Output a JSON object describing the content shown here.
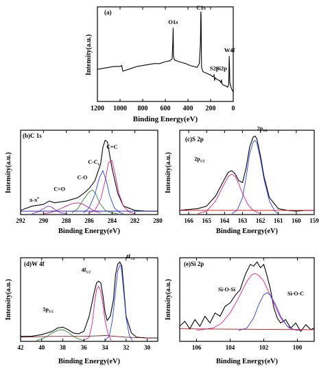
{
  "chart_data": [
    {
      "id": "a",
      "type": "line",
      "panel_label": "(a)",
      "xlabel": "Binding Energy(eV)",
      "ylabel": "Intensity(a.u.)",
      "xlim": [
        1200,
        0
      ],
      "ylim": [
        0,
        1
      ],
      "xticks": [
        1200,
        1000,
        800,
        600,
        400,
        200,
        0
      ],
      "show_y_ticklabels": false,
      "series": [
        {
          "color": "#000000",
          "x": [
            1200,
            1150,
            1100,
            1050,
            1000,
            985,
            975,
            950,
            900,
            850,
            800,
            750,
            700,
            650,
            600,
            560,
            540,
            534,
            531,
            528,
            520,
            500,
            480,
            450,
            420,
            400,
            380,
            350,
            320,
            300,
            290,
            286,
            284,
            282,
            280,
            270,
            260,
            240,
            220,
            200,
            180,
            169,
            165,
            160,
            150,
            140,
            120,
            110,
            104,
            100,
            95,
            80,
            60,
            50,
            40,
            36,
            33,
            30,
            20,
            10,
            0
          ],
          "y": [
            0.34,
            0.35,
            0.36,
            0.37,
            0.37,
            0.38,
            0.32,
            0.33,
            0.35,
            0.37,
            0.38,
            0.39,
            0.4,
            0.4,
            0.42,
            0.43,
            0.45,
            0.62,
            0.78,
            0.48,
            0.44,
            0.43,
            0.42,
            0.41,
            0.4,
            0.39,
            0.38,
            0.37,
            0.36,
            0.4,
            0.6,
            0.95,
            0.92,
            0.55,
            0.36,
            0.32,
            0.31,
            0.3,
            0.29,
            0.28,
            0.26,
            0.28,
            0.22,
            0.25,
            0.24,
            0.23,
            0.22,
            0.2,
            0.23,
            0.19,
            0.18,
            0.17,
            0.16,
            0.15,
            0.18,
            0.48,
            0.35,
            0.2,
            0.15,
            0.12,
            0.1
          ]
        }
      ],
      "annotations": [
        {
          "text": "O1s",
          "x": 531,
          "y": 0.82
        },
        {
          "text": "C1s",
          "x": 284,
          "y": 0.97
        },
        {
          "text": "W4f",
          "x": 33,
          "y": 0.52
        },
        {
          "text": "S2p",
          "x": 165,
          "y": 0.33
        },
        {
          "text": "Si2p",
          "x": 104,
          "y": 0.33
        }
      ]
    },
    {
      "id": "b",
      "type": "line",
      "panel_label": "(b)C 1s",
      "xlabel": "Binding Energy(eV)",
      "ylabel": "Intensity(a.u.)",
      "xlim": [
        292,
        280
      ],
      "ylim": [
        0,
        1
      ],
      "xticks": [
        292,
        290,
        288,
        286,
        284,
        282,
        280
      ],
      "show_y_ticklabels": false,
      "series": [
        {
          "color": "#000000",
          "x": [
            292,
            291,
            290,
            289.5,
            289,
            288,
            287,
            286.5,
            286,
            285.5,
            285,
            284.8,
            284.6,
            284.4,
            284.2,
            284,
            283.5,
            283,
            282,
            281,
            280
          ],
          "y": [
            0.05,
            0.1,
            0.12,
            0.16,
            0.14,
            0.16,
            0.2,
            0.25,
            0.31,
            0.4,
            0.6,
            0.8,
            0.88,
            0.86,
            0.7,
            0.55,
            0.25,
            0.1,
            0.05,
            0.04,
            0.04
          ]
        },
        {
          "color": "#e8198b",
          "x": [
            286,
            285.5,
            285,
            284.6,
            284.3,
            284,
            283.7,
            283.4,
            283,
            282.5,
            282
          ],
          "y": [
            0.02,
            0.05,
            0.18,
            0.4,
            0.62,
            0.64,
            0.46,
            0.25,
            0.1,
            0.03,
            0.01
          ]
        },
        {
          "color": "#1f3fff",
          "x": [
            286.5,
            286,
            285.5,
            285.1,
            284.8,
            284.5,
            284.2,
            283.8,
            283.3,
            283
          ],
          "y": [
            0.02,
            0.08,
            0.24,
            0.44,
            0.52,
            0.4,
            0.22,
            0.08,
            0.02,
            0.01
          ]
        },
        {
          "color": "#2a8a2a",
          "x": [
            287.5,
            287,
            286.5,
            286,
            285.7,
            285.4,
            285.1,
            284.6,
            284,
            283.5
          ],
          "y": [
            0.02,
            0.07,
            0.18,
            0.27,
            0.29,
            0.24,
            0.14,
            0.05,
            0.02,
            0.01
          ]
        },
        {
          "color": "#c8198b",
          "x": [
            290,
            289.5,
            289,
            288.5,
            288,
            287.5,
            287,
            286.5,
            286,
            285.5,
            285
          ],
          "y": [
            0.01,
            0.02,
            0.04,
            0.07,
            0.1,
            0.13,
            0.14,
            0.12,
            0.08,
            0.04,
            0.02
          ]
        },
        {
          "color": "#8a2fd0",
          "x": [
            291,
            290.5,
            290,
            289.6,
            289.3,
            289,
            288.5,
            288
          ],
          "y": [
            0.01,
            0.03,
            0.07,
            0.1,
            0.09,
            0.06,
            0.02,
            0.01
          ]
        },
        {
          "color": "#0000cc",
          "x": [
            292,
            280
          ],
          "y": [
            0.04,
            0.04
          ]
        }
      ],
      "annotations": [
        {
          "text": "C=C",
          "x": 284.0,
          "y": 0.78
        },
        {
          "text": "C-C",
          "sub": "x",
          "x": 285.6,
          "y": 0.6
        },
        {
          "text": "C-O",
          "x": 286.6,
          "y": 0.42
        },
        {
          "text": "C=O",
          "x": 288.6,
          "y": 0.28
        },
        {
          "text": "π-π",
          "sup": "*",
          "x": 290.8,
          "y": 0.15
        }
      ]
    },
    {
      "id": "c",
      "type": "line",
      "panel_label": "(c)S 2p",
      "xlabel": "Binding Energy(eV)",
      "ylabel": "Intensity(a.u.)",
      "xlim": [
        166.5,
        159
      ],
      "ylim": [
        0,
        1
      ],
      "xticks": [
        166,
        165,
        164,
        163,
        162,
        161,
        160,
        159
      ],
      "show_y_ticklabels": false,
      "series": [
        {
          "color": "#000000",
          "x": [
            166.5,
            166,
            165.5,
            165,
            164.5,
            164,
            163.8,
            163.6,
            163.4,
            163.2,
            163,
            162.8,
            162.6,
            162.4,
            162.3,
            162.2,
            162,
            161.8,
            161.5,
            161,
            160.5,
            160,
            159.5,
            159
          ],
          "y": [
            0.05,
            0.06,
            0.07,
            0.1,
            0.22,
            0.42,
            0.5,
            0.52,
            0.48,
            0.4,
            0.38,
            0.55,
            0.8,
            0.92,
            0.93,
            0.9,
            0.7,
            0.45,
            0.2,
            0.07,
            0.05,
            0.04,
            0.05,
            0.05
          ]
        },
        {
          "color": "#e8198b",
          "x": [
            165.5,
            165,
            164.5,
            164,
            163.8,
            163.6,
            163.4,
            163.2,
            163,
            162.7,
            162.4,
            162
          ],
          "y": [
            0.01,
            0.04,
            0.16,
            0.37,
            0.45,
            0.48,
            0.45,
            0.36,
            0.25,
            0.12,
            0.05,
            0.01
          ]
        },
        {
          "color": "#1f3fff",
          "x": [
            163.6,
            163.3,
            163,
            162.8,
            162.6,
            162.4,
            162.3,
            162.2,
            162,
            161.8,
            161.5,
            161.2,
            161
          ],
          "y": [
            0.01,
            0.05,
            0.2,
            0.44,
            0.72,
            0.86,
            0.88,
            0.85,
            0.66,
            0.42,
            0.16,
            0.04,
            0.01
          ]
        },
        {
          "color": "#d00000",
          "x": [
            166.5,
            159
          ],
          "y": [
            0.05,
            0.05
          ]
        }
      ],
      "annotations": [
        {
          "text": "2p",
          "sub": "3/2",
          "x": 161.9,
          "y": 1.0
        },
        {
          "text": "2p",
          "sub": "1/2",
          "x": 165.4,
          "y": 0.64
        }
      ]
    },
    {
      "id": "d",
      "type": "line",
      "panel_label": "(d)W 4f",
      "xlabel": "Binding Energy(eV)",
      "ylabel": "Intensity(a.u.)",
      "xlim": [
        42,
        29
      ],
      "ylim": [
        0,
        1
      ],
      "xticks": [
        42,
        40,
        38,
        36,
        34,
        32,
        30
      ],
      "show_y_ticklabels": false,
      "series": [
        {
          "color": "#000000",
          "x": [
            42,
            41,
            40,
            39,
            38.5,
            38,
            37.5,
            37,
            36.5,
            36,
            35.5,
            35,
            34.8,
            34.6,
            34.4,
            34.2,
            34,
            33.8,
            33.5,
            33.2,
            33,
            32.8,
            32.6,
            32.4,
            32.2,
            32,
            31.5,
            31,
            30,
            29
          ],
          "y": [
            0.06,
            0.06,
            0.08,
            0.12,
            0.16,
            0.17,
            0.14,
            0.1,
            0.09,
            0.12,
            0.3,
            0.6,
            0.7,
            0.72,
            0.7,
            0.55,
            0.35,
            0.25,
            0.3,
            0.5,
            0.8,
            0.92,
            0.95,
            0.9,
            0.6,
            0.3,
            0.1,
            0.05,
            0.04,
            0.04
          ]
        },
        {
          "color": "#e8198b",
          "x": [
            36,
            35.5,
            35.2,
            35,
            34.8,
            34.6,
            34.4,
            34.2,
            34,
            33.7,
            33.4
          ],
          "y": [
            0.01,
            0.05,
            0.22,
            0.45,
            0.62,
            0.66,
            0.6,
            0.44,
            0.25,
            0.08,
            0.01
          ]
        },
        {
          "color": "#1f3fff",
          "x": [
            34,
            33.6,
            33.3,
            33,
            32.8,
            32.6,
            32.5,
            32.4,
            32.2,
            32,
            31.7,
            31.4
          ],
          "y": [
            0.01,
            0.06,
            0.25,
            0.6,
            0.84,
            0.91,
            0.9,
            0.82,
            0.55,
            0.28,
            0.07,
            0.01
          ]
        },
        {
          "color": "#2a8a2a",
          "x": [
            40.5,
            40,
            39.5,
            39,
            38.5,
            38,
            37.5,
            37,
            36.5,
            36
          ],
          "y": [
            0.01,
            0.03,
            0.06,
            0.1,
            0.13,
            0.14,
            0.11,
            0.06,
            0.03,
            0.01
          ]
        },
        {
          "color": "#7a2020",
          "x": [
            42,
            39,
            36,
            34,
            32,
            30,
            29
          ],
          "y": [
            0.05,
            0.06,
            0.06,
            0.07,
            0.05,
            0.04,
            0.04
          ]
        }
      ],
      "annotations": [
        {
          "text": "4f",
          "sub": "7/2",
          "x": 31.6,
          "y": 0.99
        },
        {
          "text": "4f",
          "sub": "5/2",
          "x": 35.8,
          "y": 0.83
        },
        {
          "text": "5p",
          "sub": "3/2",
          "x": 39.4,
          "y": 0.36
        }
      ]
    },
    {
      "id": "e",
      "type": "line",
      "panel_label": "(e)Si 2p",
      "xlabel": "Binding Energy(eV)",
      "ylabel": "Intensity(a.u.)",
      "xlim": [
        107,
        99
      ],
      "ylim": [
        0,
        1
      ],
      "xticks": [
        106,
        104,
        102,
        100
      ],
      "show_y_ticklabels": false,
      "series": [
        {
          "color": "#000000",
          "x": [
            107,
            106.7,
            106.4,
            106.1,
            105.8,
            105.5,
            105.2,
            104.9,
            104.6,
            104.3,
            104,
            103.7,
            103.4,
            103.1,
            102.8,
            102.6,
            102.4,
            102.2,
            102,
            101.8,
            101.6,
            101.4,
            101.2,
            101,
            100.7,
            100.4,
            100.1,
            99.8,
            99.5,
            99.2,
            99
          ],
          "y": [
            0.18,
            0.24,
            0.15,
            0.26,
            0.18,
            0.3,
            0.22,
            0.34,
            0.3,
            0.42,
            0.46,
            0.55,
            0.62,
            0.8,
            0.92,
            0.9,
            0.95,
            0.88,
            0.92,
            0.78,
            0.62,
            0.4,
            0.28,
            0.22,
            0.26,
            0.16,
            0.22,
            0.12,
            0.2,
            0.14,
            0.16
          ]
        },
        {
          "color": "#e8198b",
          "x": [
            106,
            105,
            104.5,
            104,
            103.5,
            103,
            102.7,
            102.5,
            102.3,
            102,
            101.5,
            101,
            100.5,
            100
          ],
          "y": [
            0.13,
            0.16,
            0.22,
            0.34,
            0.52,
            0.72,
            0.8,
            0.81,
            0.79,
            0.72,
            0.5,
            0.28,
            0.16,
            0.13
          ]
        },
        {
          "color": "#1f3fff",
          "x": [
            103.5,
            103,
            102.6,
            102.3,
            102,
            101.8,
            101.6,
            101.3,
            101,
            100.6,
            100.2,
            99.8
          ],
          "y": [
            0.13,
            0.16,
            0.28,
            0.44,
            0.56,
            0.58,
            0.55,
            0.44,
            0.3,
            0.18,
            0.14,
            0.13
          ]
        },
        {
          "color": "#d00000",
          "x": [
            107,
            99
          ],
          "y": [
            0.15,
            0.14
          ]
        }
      ],
      "annotations": [
        {
          "text": "Si-O-Si",
          "x": 104.2,
          "y": 0.6
        },
        {
          "text": "Si-O-C",
          "x": 100.1,
          "y": 0.55
        }
      ]
    }
  ]
}
